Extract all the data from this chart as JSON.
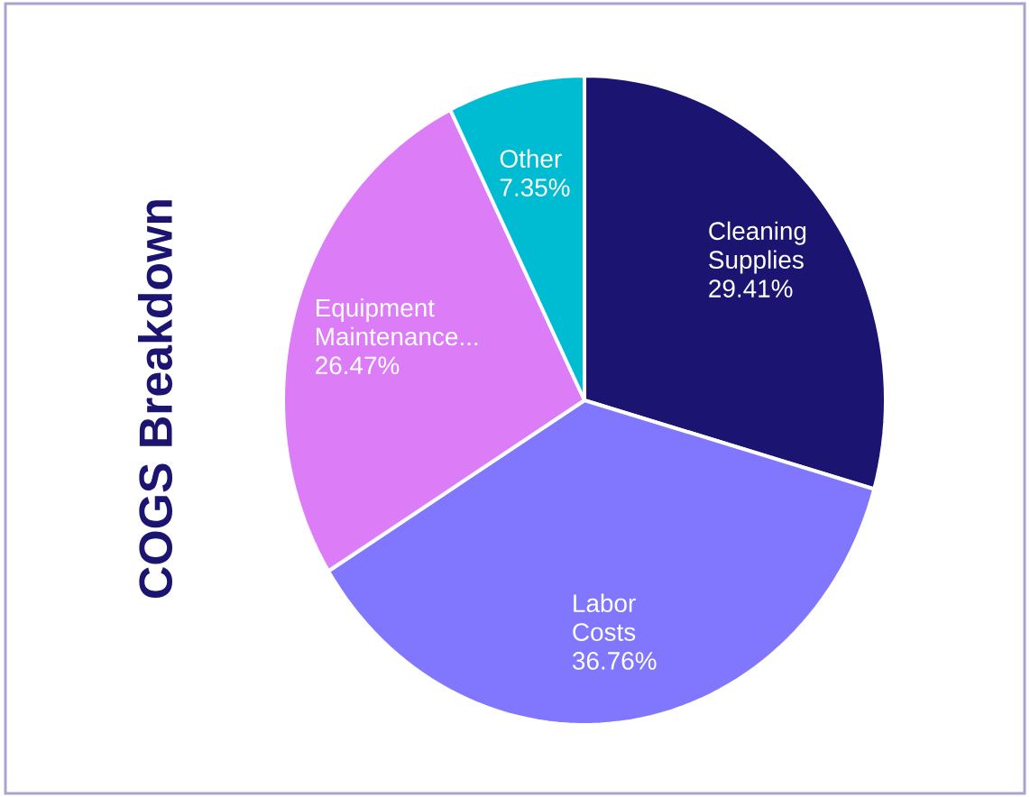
{
  "chart_data": {
    "type": "pie",
    "title": "COGS Breakdown",
    "categories": [
      "Cleaning Supplies",
      "Labor Costs",
      "Equipment Maintenance...",
      "Other"
    ],
    "values": [
      29.41,
      36.76,
      26.47,
      7.35
    ],
    "colors": [
      "#1b1470",
      "#8077fe",
      "#dc7cf6",
      "#00bcd2"
    ],
    "value_labels": [
      "29.41%",
      "36.76%",
      "26.47%",
      "7.35%"
    ]
  }
}
